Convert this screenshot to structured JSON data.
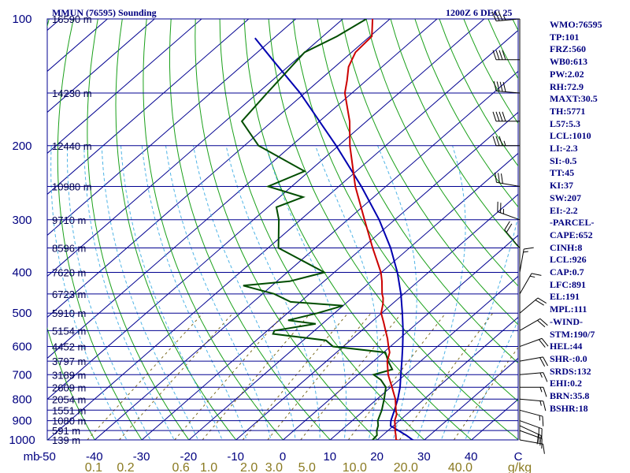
{
  "title": {
    "station": "MMUN (76595) Sounding",
    "time": "1200Z  6 DEC 25"
  },
  "stats": [
    "WMO:76595",
    "TP:101",
    "FRZ:560",
    "WB0:613",
    "PW:2.02",
    "RH:72.9",
    "MAXT:30.5",
    "TH:5771",
    "L57:5.3",
    "LCL:1010",
    "LI:-2.3",
    "SI:-0.5",
    "TT:45",
    "KI:37",
    "SW:207",
    "EI:-2.2",
    "-PARCEL-",
    "CAPE:652",
    "CINH:8",
    "LCL:926",
    "CAP:0.7",
    "LFC:891",
    "EL:191",
    "MPL:111",
    "-WIND-",
    "STM:190/7",
    "HEL:44",
    "SHR-:0.0",
    "SRDS:132",
    "EHI:0.2",
    "BRN:35.8",
    "BSHR:18"
  ],
  "colors": {
    "isobar": "#000090",
    "isotherm": "#000090",
    "dry_adiabat": "#1aa01a",
    "moist_adiabat": "#4fb4e6",
    "mixing_ratio": "#7a6a20",
    "temperature": "#cc0000",
    "dewpoint": "#004d00",
    "parcel": "#0000b0",
    "wind": "#000000",
    "label": "#000080",
    "mixing_label": "#8a7a20"
  },
  "chart_data": {
    "type": "skew-t",
    "pressure_unit": "mb",
    "temperature_unit": "C",
    "mixing_ratio_unit": "g/kg",
    "pressure_range": [
      1000,
      100
    ],
    "x_range": [
      -50,
      50
    ],
    "pressure_ticks": [
      {
        "p": 100,
        "label": "100"
      },
      {
        "p": 200,
        "label": "200"
      },
      {
        "p": 300,
        "label": "300"
      },
      {
        "p": 400,
        "label": "400"
      },
      {
        "p": 500,
        "label": "500"
      },
      {
        "p": 600,
        "label": "600"
      },
      {
        "p": 700,
        "label": "700"
      },
      {
        "p": 800,
        "label": "800"
      },
      {
        "p": 900,
        "label": "900"
      },
      {
        "p": 1000,
        "label": "1000"
      }
    ],
    "temperature_ticks": [
      "-50",
      "-40",
      "-30",
      "-20",
      "-10",
      "0",
      "10",
      "20",
      "30",
      "40",
      "C"
    ],
    "temperature_tick_values": [
      -50,
      -40,
      -30,
      -20,
      -10,
      0,
      10,
      20,
      30,
      40,
      50
    ],
    "mixing_ratio_labels": [
      {
        "w": 0.1,
        "label": "0.1"
      },
      {
        "w": 0.2,
        "label": "0.2"
      },
      {
        "w": 0.6,
        "label": "0.6"
      },
      {
        "w": 1.0,
        "label": "1.0"
      },
      {
        "w": 2.0,
        "label": "2.0"
      },
      {
        "w": 3.0,
        "label": "3.0"
      },
      {
        "w": 5.0,
        "label": "5.0"
      },
      {
        "w": 10.0,
        "label": "10.0"
      },
      {
        "w": 20.0,
        "label": "20.0"
      },
      {
        "w": 40.0,
        "label": "40.0"
      }
    ],
    "mixing_ratio_unit_label": "g/kg",
    "pressure_axis_unit_label": "mb",
    "height_labels": [
      {
        "p": 100,
        "label": "16590 m"
      },
      {
        "p": 150,
        "label": "14230 m"
      },
      {
        "p": 200,
        "label": "12440 m"
      },
      {
        "p": 250,
        "label": "10980 m"
      },
      {
        "p": 300,
        "label": "9710 m"
      },
      {
        "p": 350,
        "label": "8596 m"
      },
      {
        "p": 400,
        "label": "7620 m"
      },
      {
        "p": 450,
        "label": "6723 m"
      },
      {
        "p": 500,
        "label": "5910 m"
      },
      {
        "p": 550,
        "label": "5154 m"
      },
      {
        "p": 600,
        "label": "4452 m"
      },
      {
        "p": 650,
        "label": "3797 m"
      },
      {
        "p": 700,
        "label": "3189 m"
      },
      {
        "p": 750,
        "label": "2609 m"
      },
      {
        "p": 800,
        "label": "2054 m"
      },
      {
        "p": 850,
        "label": "1551 m"
      },
      {
        "p": 900,
        "label": "1080 m"
      },
      {
        "p": 950,
        "label": "591 m"
      },
      {
        "p": 1000,
        "label": "139 m"
      }
    ],
    "temperature_profile": [
      {
        "p": 1010,
        "t": 26.3
      },
      {
        "p": 1000,
        "t": 24.0
      },
      {
        "p": 975,
        "t": 22.8
      },
      {
        "p": 950,
        "t": 21.5
      },
      {
        "p": 925,
        "t": 20.3
      },
      {
        "p": 900,
        "t": 19.0
      },
      {
        "p": 870,
        "t": 17.9
      },
      {
        "p": 850,
        "t": 16.7
      },
      {
        "p": 800,
        "t": 13.9
      },
      {
        "p": 750,
        "t": 10.3
      },
      {
        "p": 700,
        "t": 6.4
      },
      {
        "p": 650,
        "t": 2.9
      },
      {
        "p": 620,
        "t": 1.3
      },
      {
        "p": 600,
        "t": -0.4
      },
      {
        "p": 575,
        "t": -2.5
      },
      {
        "p": 550,
        "t": -4.9
      },
      {
        "p": 525,
        "t": -7.4
      },
      {
        "p": 500,
        "t": -10.1
      },
      {
        "p": 475,
        "t": -12.0
      },
      {
        "p": 460,
        "t": -13.4
      },
      {
        "p": 450,
        "t": -14.6
      },
      {
        "p": 420,
        "t": -17.7
      },
      {
        "p": 400,
        "t": -20.1
      },
      {
        "p": 350,
        "t": -27.8
      },
      {
        "p": 300,
        "t": -36.4
      },
      {
        "p": 250,
        "t": -46.5
      },
      {
        "p": 200,
        "t": -57.6
      },
      {
        "p": 175,
        "t": -63.6
      },
      {
        "p": 150,
        "t": -71.5
      },
      {
        "p": 140,
        "t": -74.1
      },
      {
        "p": 130,
        "t": -77.1
      },
      {
        "p": 120,
        "t": -79.2
      },
      {
        "p": 110,
        "t": -79.6
      },
      {
        "p": 100,
        "t": -83.7
      }
    ],
    "dewpoint_profile": [
      {
        "p": 1010,
        "t": 20.5
      },
      {
        "p": 1000,
        "t": 19.0
      },
      {
        "p": 975,
        "t": 18.8
      },
      {
        "p": 950,
        "t": 17.6
      },
      {
        "p": 925,
        "t": 16.7
      },
      {
        "p": 900,
        "t": 15.4
      },
      {
        "p": 850,
        "t": 13.7
      },
      {
        "p": 800,
        "t": 11.5
      },
      {
        "p": 750,
        "t": 9.0
      },
      {
        "p": 720,
        "t": 6.1
      },
      {
        "p": 700,
        "t": 3.3
      },
      {
        "p": 680,
        "t": 6.0
      },
      {
        "p": 650,
        "t": 3.1
      },
      {
        "p": 620,
        "t": 0.4
      },
      {
        "p": 600,
        "t": -12.2
      },
      {
        "p": 580,
        "t": -15.2
      },
      {
        "p": 560,
        "t": -28.0
      },
      {
        "p": 550,
        "t": -28.5
      },
      {
        "p": 530,
        "t": -21.4
      },
      {
        "p": 520,
        "t": -28.1
      },
      {
        "p": 500,
        "t": -23.6
      },
      {
        "p": 480,
        "t": -20.0
      },
      {
        "p": 470,
        "t": -32.1
      },
      {
        "p": 450,
        "t": -37.5
      },
      {
        "p": 430,
        "t": -46.1
      },
      {
        "p": 420,
        "t": -37.3
      },
      {
        "p": 400,
        "t": -32.1
      },
      {
        "p": 350,
        "t": -47.8
      },
      {
        "p": 300,
        "t": -54.6
      },
      {
        "p": 280,
        "t": -58.2
      },
      {
        "p": 265,
        "t": -55.0
      },
      {
        "p": 250,
        "t": -65.0
      },
      {
        "p": 230,
        "t": -61.0
      },
      {
        "p": 200,
        "t": -77.0
      },
      {
        "p": 175,
        "t": -86.5
      },
      {
        "p": 150,
        "t": -88.0
      },
      {
        "p": 120,
        "t": -90.0
      },
      {
        "p": 110,
        "t": -87.0
      },
      {
        "p": 100,
        "t": -85.0
      }
    ],
    "parcel_profile": [
      {
        "p": 1010,
        "t": 29.0
      },
      {
        "p": 1000,
        "t": 27.5
      },
      {
        "p": 975,
        "t": 25.0
      },
      {
        "p": 926,
        "t": 19.4
      },
      {
        "p": 900,
        "t": 18.2
      },
      {
        "p": 850,
        "t": 16.4
      },
      {
        "p": 800,
        "t": 14.4
      },
      {
        "p": 750,
        "t": 12.0
      },
      {
        "p": 700,
        "t": 9.1
      },
      {
        "p": 650,
        "t": 6.0
      },
      {
        "p": 600,
        "t": 2.6
      },
      {
        "p": 550,
        "t": -1.2
      },
      {
        "p": 500,
        "t": -5.6
      },
      {
        "p": 450,
        "t": -10.6
      },
      {
        "p": 400,
        "t": -16.6
      },
      {
        "p": 350,
        "t": -24.0
      },
      {
        "p": 300,
        "t": -33.3
      },
      {
        "p": 250,
        "t": -45.2
      },
      {
        "p": 200,
        "t": -60.5
      },
      {
        "p": 150,
        "t": -81.0
      },
      {
        "p": 125,
        "t": -95.0
      },
      {
        "p": 111,
        "t": -104.0
      }
    ],
    "wind_barbs": [
      {
        "p": 1000,
        "dir": 100,
        "kt": 10
      },
      {
        "p": 950,
        "dir": 110,
        "kt": 15
      },
      {
        "p": 925,
        "dir": 115,
        "kt": 20
      },
      {
        "p": 900,
        "dir": 110,
        "kt": 20
      },
      {
        "p": 850,
        "dir": 105,
        "kt": 15
      },
      {
        "p": 800,
        "dir": 95,
        "kt": 15
      },
      {
        "p": 750,
        "dir": 90,
        "kt": 15
      },
      {
        "p": 700,
        "dir": 85,
        "kt": 15
      },
      {
        "p": 650,
        "dir": 80,
        "kt": 20
      },
      {
        "p": 600,
        "dir": 70,
        "kt": 20
      },
      {
        "p": 550,
        "dir": 60,
        "kt": 20
      },
      {
        "p": 500,
        "dir": 50,
        "kt": 20
      },
      {
        "p": 450,
        "dir": 30,
        "kt": 15
      },
      {
        "p": 400,
        "dir": 10,
        "kt": 15
      },
      {
        "p": 350,
        "dir": 320,
        "kt": 20
      },
      {
        "p": 300,
        "dir": 290,
        "kt": 25
      },
      {
        "p": 250,
        "dir": 280,
        "kt": 30
      },
      {
        "p": 200,
        "dir": 270,
        "kt": 35
      },
      {
        "p": 175,
        "dir": 270,
        "kt": 40
      },
      {
        "p": 150,
        "dir": 275,
        "kt": 40
      },
      {
        "p": 125,
        "dir": 270,
        "kt": 40
      },
      {
        "p": 100,
        "dir": 265,
        "kt": 35
      }
    ]
  }
}
